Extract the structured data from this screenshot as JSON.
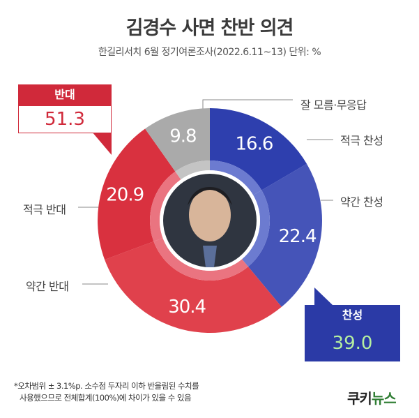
{
  "title": "김경수 사면 찬반 의견",
  "subtitle": "한길리서치 6월 정기여론조사(2022.6.11~13) 단위: %",
  "colors": {
    "strong_support": "#2e3fae",
    "weak_support": "#4554b8",
    "dont_know": "#aaaaaa",
    "strong_oppose": "#d9313f",
    "weak_oppose": "#e0414c",
    "inner_blue": "#6c7bd0",
    "inner_red": "#ea7480",
    "inner_gray": "#c4c4c4"
  },
  "chart_data": {
    "type": "pie",
    "categories": [
      "적극 찬성",
      "약간 찬성",
      "약간 반대",
      "적극 반대",
      "잘 모름·무응답"
    ],
    "values": [
      16.6,
      22.4,
      30.4,
      20.9,
      9.8
    ],
    "value_labels": [
      "16.6",
      "22.4",
      "30.4",
      "20.9",
      "9.8"
    ],
    "groups": [
      {
        "label": "찬성",
        "value": "39.0"
      },
      {
        "label": "반대",
        "value": "51.3"
      }
    ]
  },
  "footnote": {
    "line1": "*오차범위 ± 3.1%p. 소수점 두자리 이하 반올림된 수치를",
    "line2": "사용했으므로 전체합계(100%)에 차이가 있을 수 있음"
  },
  "logo": {
    "part1": "쿠키",
    "part2": "뉴스"
  }
}
